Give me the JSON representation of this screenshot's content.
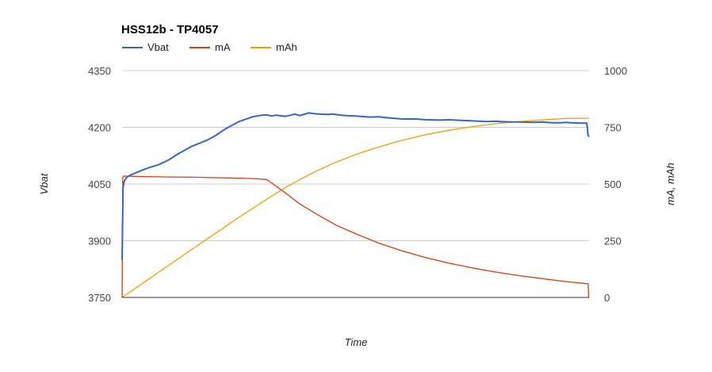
{
  "chart_data": {
    "type": "line",
    "title": "HSS12b - TP4057",
    "xlabel": "Time",
    "ylabel_left": "Vbat",
    "ylabel_right": "mA, mAh",
    "legend_position": "top-left",
    "grid": true,
    "y_left": {
      "min": 3750,
      "max": 4350,
      "ticks": [
        "3750",
        "3900",
        "4050",
        "4200",
        "4350"
      ]
    },
    "y_right": {
      "min": 0,
      "max": 1000,
      "ticks": [
        "0",
        "250",
        "500",
        "750",
        "1000"
      ]
    },
    "x_range": [
      0,
      100
    ],
    "series": [
      {
        "name": "Vbat",
        "axis": "left",
        "color": "#3366cc",
        "x": [
          0,
          0.2,
          0.4,
          0.8,
          1.5,
          3,
          5,
          8,
          10,
          12,
          15,
          18,
          20,
          22,
          25,
          28,
          30,
          31,
          32,
          33,
          35,
          37,
          38,
          40,
          41,
          42,
          44,
          45,
          47,
          48,
          50,
          53,
          55,
          57,
          60,
          63,
          65,
          68,
          70,
          73,
          75,
          78,
          80,
          83,
          85,
          88,
          90,
          92,
          94,
          95,
          96,
          98,
          99.5,
          99.8,
          100
        ],
        "values": [
          3848,
          4040,
          4055,
          4065,
          4072,
          4080,
          4090,
          4102,
          4114,
          4130,
          4150,
          4165,
          4178,
          4195,
          4215,
          4228,
          4232,
          4233,
          4230,
          4232,
          4229,
          4235,
          4231,
          4238,
          4236,
          4235,
          4234,
          4235,
          4232,
          4231,
          4230,
          4227,
          4228,
          4225,
          4222,
          4222,
          4220,
          4219,
          4220,
          4218,
          4217,
          4215,
          4216,
          4214,
          4214,
          4213,
          4214,
          4212,
          4212,
          4213,
          4212,
          4211,
          4211,
          4178,
          4175
        ]
      },
      {
        "name": "mA",
        "axis": "right",
        "color": "#dc3912",
        "x": [
          0,
          0.15,
          0.3,
          5,
          10,
          15,
          20,
          25,
          28,
          31,
          32,
          35,
          38,
          42,
          46,
          50,
          55,
          60,
          65,
          70,
          75,
          80,
          85,
          90,
          95,
          99.8,
          99.9,
          100
        ],
        "values": [
          0,
          530,
          535,
          533,
          531,
          530,
          528,
          526,
          524,
          520,
          505,
          460,
          413,
          363,
          317,
          281,
          239,
          205,
          176,
          151,
          130,
          112,
          96,
          83,
          70,
          60,
          0,
          0
        ]
      },
      {
        "name": "mAh",
        "axis": "right",
        "color": "#ff9900",
        "x": [
          0,
          5,
          10,
          15,
          20,
          25,
          30,
          32,
          35,
          40,
          45,
          50,
          55,
          60,
          65,
          70,
          75,
          80,
          85,
          90,
          95,
          100
        ],
        "values": [
          0,
          71,
          142,
          213,
          283,
          353,
          420,
          447,
          485,
          541,
          590,
          630,
          664,
          693,
          718,
          737,
          753,
          766,
          775,
          783,
          789,
          790
        ]
      }
    ]
  }
}
